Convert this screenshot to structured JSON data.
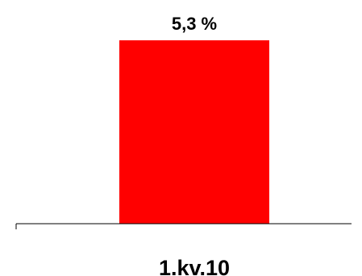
{
  "chart_data": {
    "type": "bar",
    "categories": [
      "1.kv.10"
    ],
    "values": [
      5.3
    ],
    "data_labels": [
      "5,3 %"
    ],
    "ylim": [
      0,
      6
    ],
    "grid": false,
    "legend": "none",
    "colors": {
      "bar": "#ff0000",
      "axis": "#000000"
    }
  }
}
